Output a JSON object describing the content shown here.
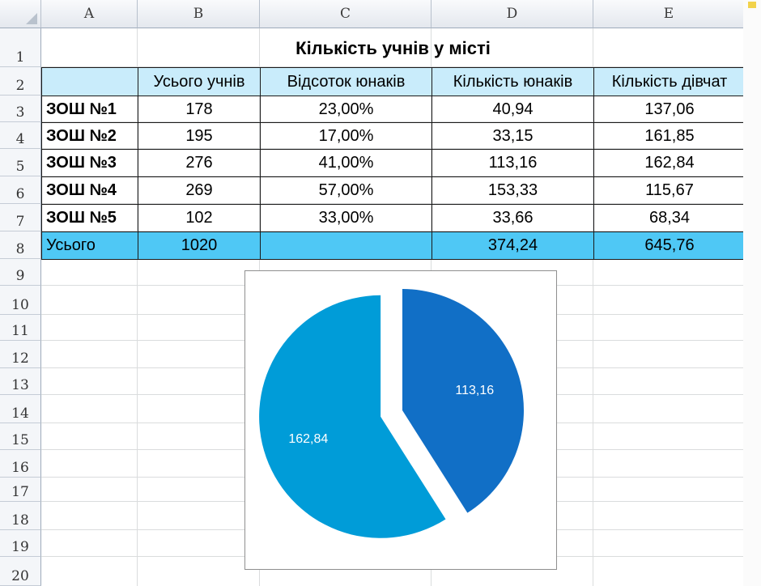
{
  "columns": [
    "A",
    "B",
    "C",
    "D",
    "E"
  ],
  "rows": [
    "1",
    "2",
    "3",
    "4",
    "5",
    "6",
    "7",
    "8",
    "9",
    "10",
    "11",
    "12",
    "13",
    "14",
    "15",
    "16",
    "17",
    "18",
    "19",
    "20"
  ],
  "title": "Кількість учнів у місті",
  "table": {
    "headers": [
      "",
      "Усього учнів",
      "Відсоток юнаків",
      "Кількість юнаків",
      "Кількість дівчат"
    ],
    "rows": [
      [
        "ЗОШ №1",
        "178",
        "23,00%",
        "40,94",
        "137,06"
      ],
      [
        "ЗОШ №2",
        "195",
        "17,00%",
        "33,15",
        "161,85"
      ],
      [
        "ЗОШ №3",
        "276",
        "41,00%",
        "113,16",
        "162,84"
      ],
      [
        "ЗОШ №4",
        "269",
        "57,00%",
        "153,33",
        "115,67"
      ],
      [
        "ЗОШ №5",
        "102",
        "33,00%",
        "33,66",
        "68,34"
      ]
    ],
    "total": [
      "Усього",
      "1020",
      "",
      "374,24",
      "645,76"
    ]
  },
  "colors": {
    "header_fill": "#c9ecfb",
    "total_fill": "#4fc8f5",
    "slice_boys": "#116fc6",
    "slice_girls": "#009cd8"
  },
  "chart_data": {
    "type": "pie",
    "slices": [
      {
        "value": 113.16,
        "label": "113,16",
        "color": "#116fc6",
        "exploded": false
      },
      {
        "value": 162.84,
        "label": "162,84",
        "color": "#009cd8",
        "exploded": true
      }
    ]
  }
}
